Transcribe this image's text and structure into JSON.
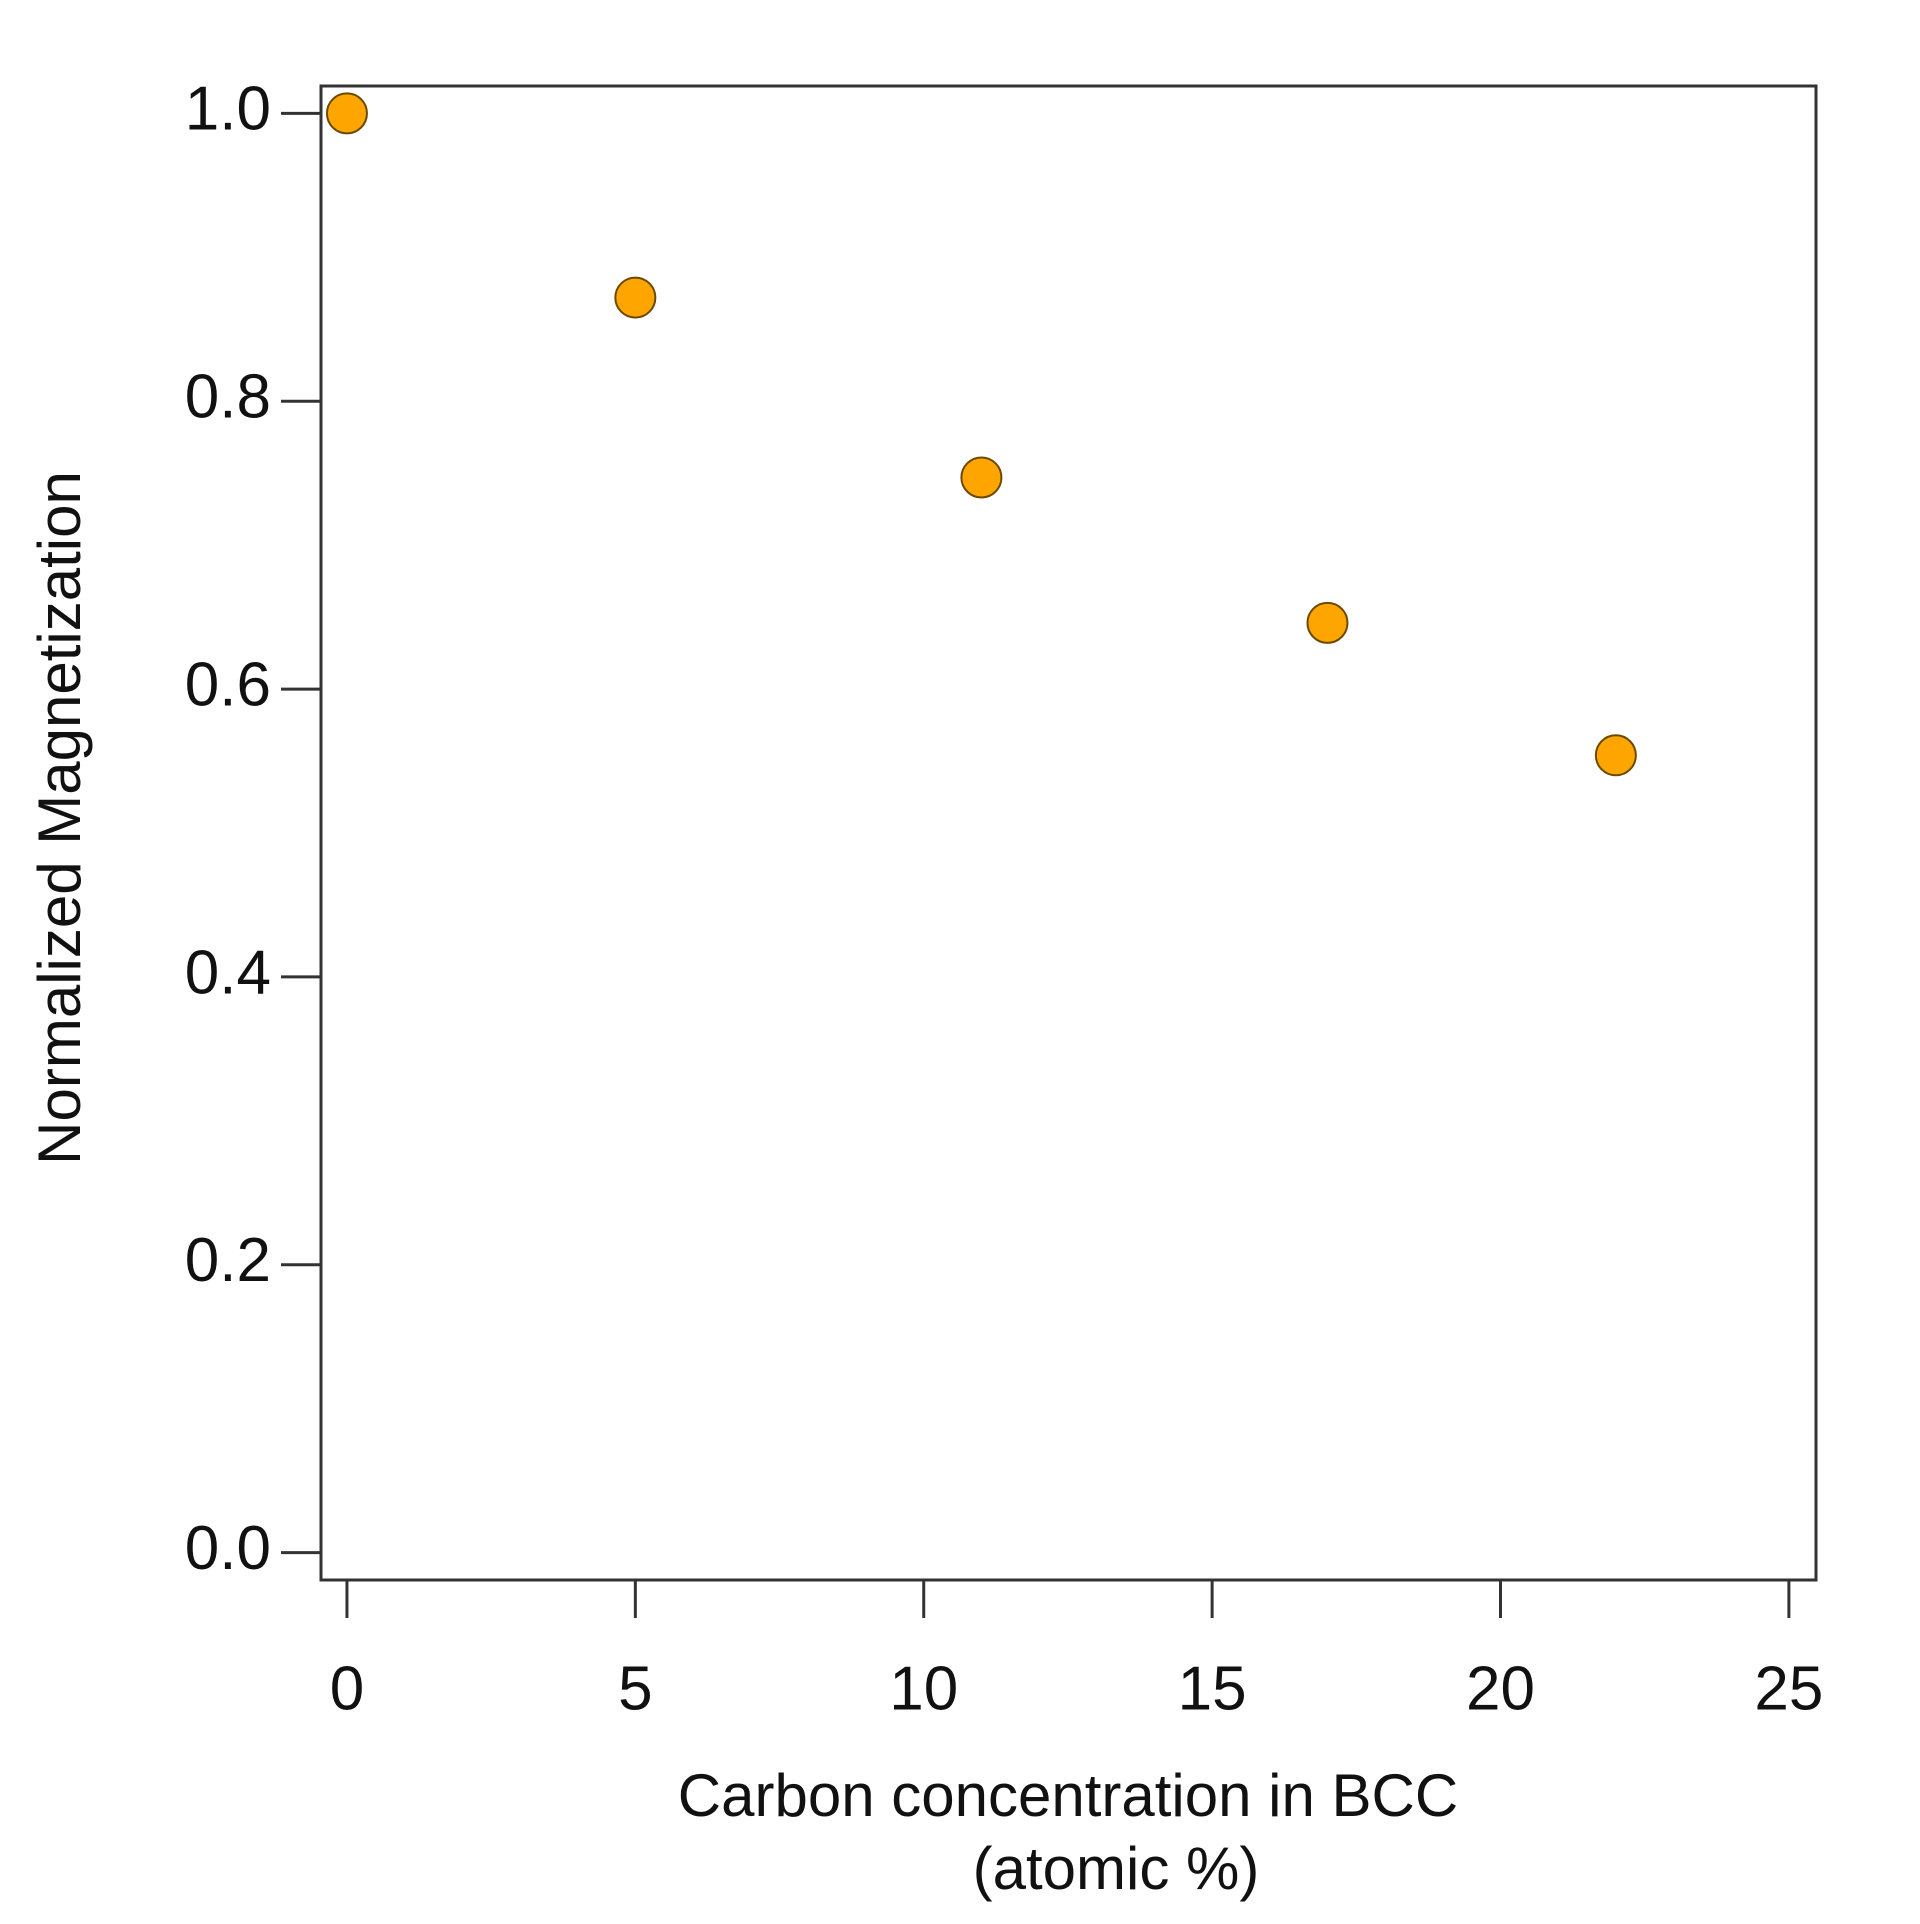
{
  "chart_data": {
    "type": "scatter",
    "xlabel": [
      "Carbon concentration in BCC",
      "(atomic %)"
    ],
    "ylabel": "Normalized Magnetization",
    "series": [
      {
        "x": [
          0,
          5,
          11,
          17,
          22
        ],
        "values": [
          1.0,
          0.872,
          0.747,
          0.646,
          0.554
        ],
        "color": "#ffa500"
      }
    ],
    "xlim": [
      -0.45,
      25.47
    ],
    "ylim": [
      -0.019,
      1.019
    ],
    "xticks": [
      0,
      5,
      10,
      15,
      20,
      25
    ],
    "yticks": [
      {
        "value": 0,
        "label": "0.0"
      },
      {
        "value": 0.2,
        "label": "0.2"
      },
      {
        "value": 0.4,
        "label": "0.4"
      },
      {
        "value": 0.6,
        "label": "0.6"
      },
      {
        "value": 0.8,
        "label": "0.8"
      },
      {
        "value": 1,
        "label": "1.0"
      }
    ],
    "grid": false
  }
}
